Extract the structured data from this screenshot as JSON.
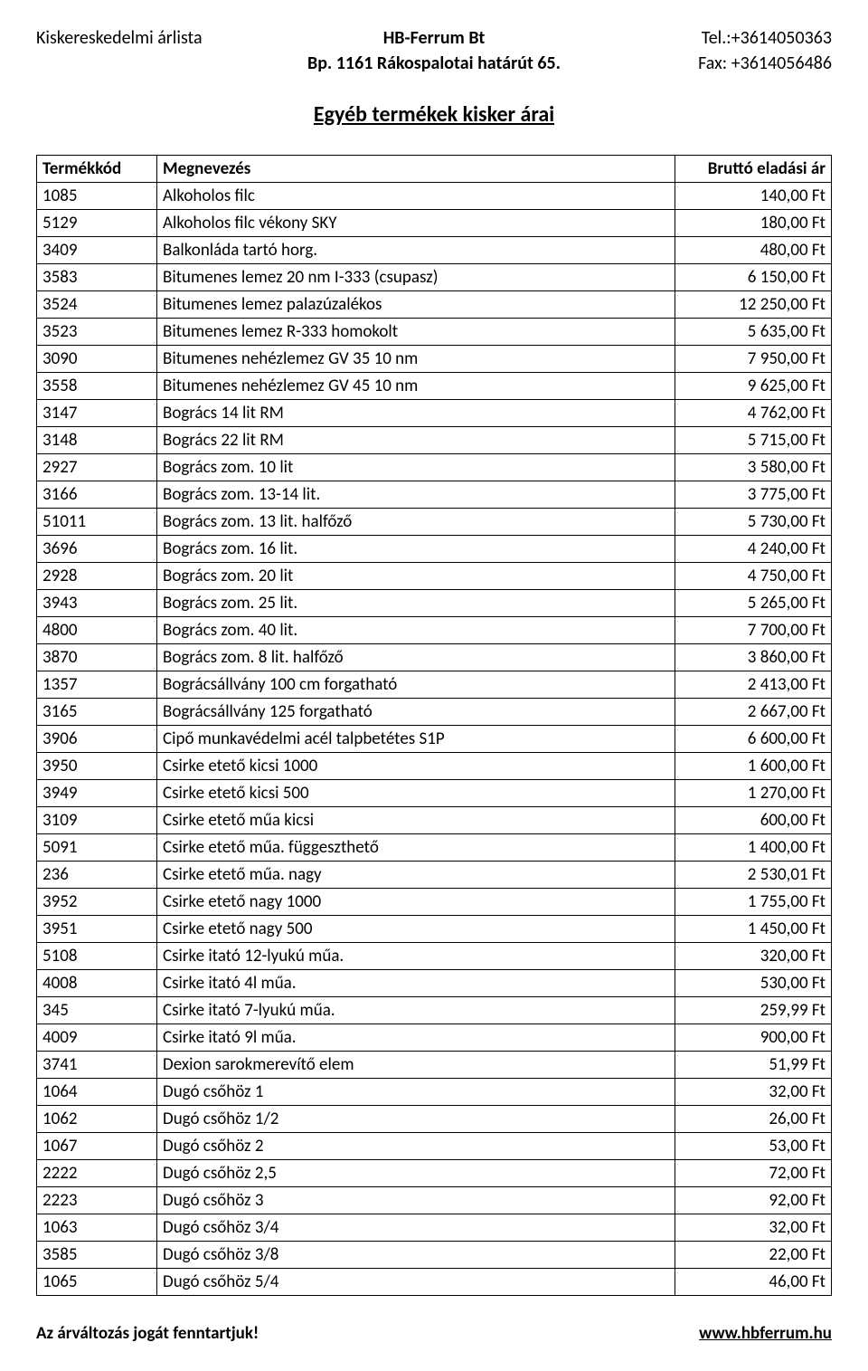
{
  "header": {
    "left": "Kiskereskedelmi árlista",
    "company": "HB-Ferrum Bt",
    "address": "Bp. 1161 Rákospalotai határút 65.",
    "tel": "Tel.:+3614050363",
    "fax": "Fax: +3614056486"
  },
  "title": "Egyéb termékek kisker árai",
  "table": {
    "columns": [
      "Termékkód",
      "Megnevezés",
      "Bruttó eladási ár"
    ],
    "rows": [
      [
        "1085",
        "Alkoholos filc",
        "140,00 Ft"
      ],
      [
        "5129",
        "Alkoholos filc vékony SKY",
        "180,00 Ft"
      ],
      [
        "3409",
        "Balkonláda tartó horg.",
        "480,00 Ft"
      ],
      [
        "3583",
        "Bitumenes lemez 20 nm I-333 (csupasz)",
        "6 150,00 Ft"
      ],
      [
        "3524",
        "Bitumenes lemez palazúzalékos",
        "12 250,00 Ft"
      ],
      [
        "3523",
        "Bitumenes lemez R-333 homokolt",
        "5 635,00 Ft"
      ],
      [
        "3090",
        "Bitumenes nehézlemez GV 35 10 nm",
        "7 950,00 Ft"
      ],
      [
        "3558",
        "Bitumenes nehézlemez GV 45 10 nm",
        "9 625,00 Ft"
      ],
      [
        "3147",
        "Bogrács 14 lit RM",
        "4 762,00 Ft"
      ],
      [
        "3148",
        "Bogrács 22 lit RM",
        "5 715,00 Ft"
      ],
      [
        "2927",
        "Bogrács zom. 10 lit",
        "3 580,00 Ft"
      ],
      [
        "3166",
        "Bogrács zom. 13-14 lit.",
        "3 775,00 Ft"
      ],
      [
        "51011",
        "Bogrács zom. 13 lit. halfőző",
        "5 730,00 Ft"
      ],
      [
        "3696",
        "Bogrács zom. 16 lit.",
        "4 240,00 Ft"
      ],
      [
        "2928",
        "Bogrács zom. 20 lit",
        "4 750,00 Ft"
      ],
      [
        "3943",
        "Bogrács zom. 25 lit.",
        "5 265,00 Ft"
      ],
      [
        "4800",
        "Bogrács zom. 40 lit.",
        "7 700,00 Ft"
      ],
      [
        "3870",
        "Bogrács zom. 8 lit. halfőző",
        "3 860,00 Ft"
      ],
      [
        "1357",
        "Bográcsállvány 100 cm forgatható",
        "2 413,00 Ft"
      ],
      [
        "3165",
        "Bográcsállvány 125 forgatható",
        "2 667,00 Ft"
      ],
      [
        "3906",
        "Cipő munkavédelmi acél talpbetétes S1P",
        "6 600,00 Ft"
      ],
      [
        "3950",
        "Csirke etető kicsi 1000",
        "1 600,00 Ft"
      ],
      [
        "3949",
        "Csirke etető kicsi 500",
        "1 270,00 Ft"
      ],
      [
        "3109",
        "Csirke etető műa kicsi",
        "600,00 Ft"
      ],
      [
        "5091",
        "Csirke etető műa. függeszthető",
        "1 400,00 Ft"
      ],
      [
        "236",
        "Csirke etető műa. nagy",
        "2 530,01 Ft"
      ],
      [
        "3952",
        "Csirke etető nagy 1000",
        "1 755,00 Ft"
      ],
      [
        "3951",
        "Csirke etető nagy 500",
        "1 450,00 Ft"
      ],
      [
        "5108",
        "Csirke itató 12-lyukú műa.",
        "320,00 Ft"
      ],
      [
        "4008",
        "Csirke itató 4l műa.",
        "530,00 Ft"
      ],
      [
        "345",
        "Csirke itató 7-lyukú műa.",
        "259,99 Ft"
      ],
      [
        "4009",
        "Csirke itató 9l műa.",
        "900,00 Ft"
      ],
      [
        "3741",
        "Dexion sarokmerevítő elem",
        "51,99 Ft"
      ],
      [
        "1064",
        "Dugó csőhöz 1",
        "32,00 Ft"
      ],
      [
        "1062",
        "Dugó csőhöz 1/2",
        "26,00 Ft"
      ],
      [
        "1067",
        "Dugó csőhöz 2",
        "53,00 Ft"
      ],
      [
        "2222",
        "Dugó csőhöz 2,5",
        "72,00 Ft"
      ],
      [
        "2223",
        "Dugó csőhöz 3",
        "92,00 Ft"
      ],
      [
        "1063",
        "Dugó csőhöz 3/4",
        "32,00 Ft"
      ],
      [
        "3585",
        "Dugó csőhöz 3/8",
        "22,00 Ft"
      ],
      [
        "1065",
        "Dugó csőhöz 5/4",
        "46,00 Ft"
      ]
    ]
  },
  "footer": {
    "left": "Az árváltozás jogát fenntartjuk!",
    "right": "www.hbferrum.hu"
  }
}
